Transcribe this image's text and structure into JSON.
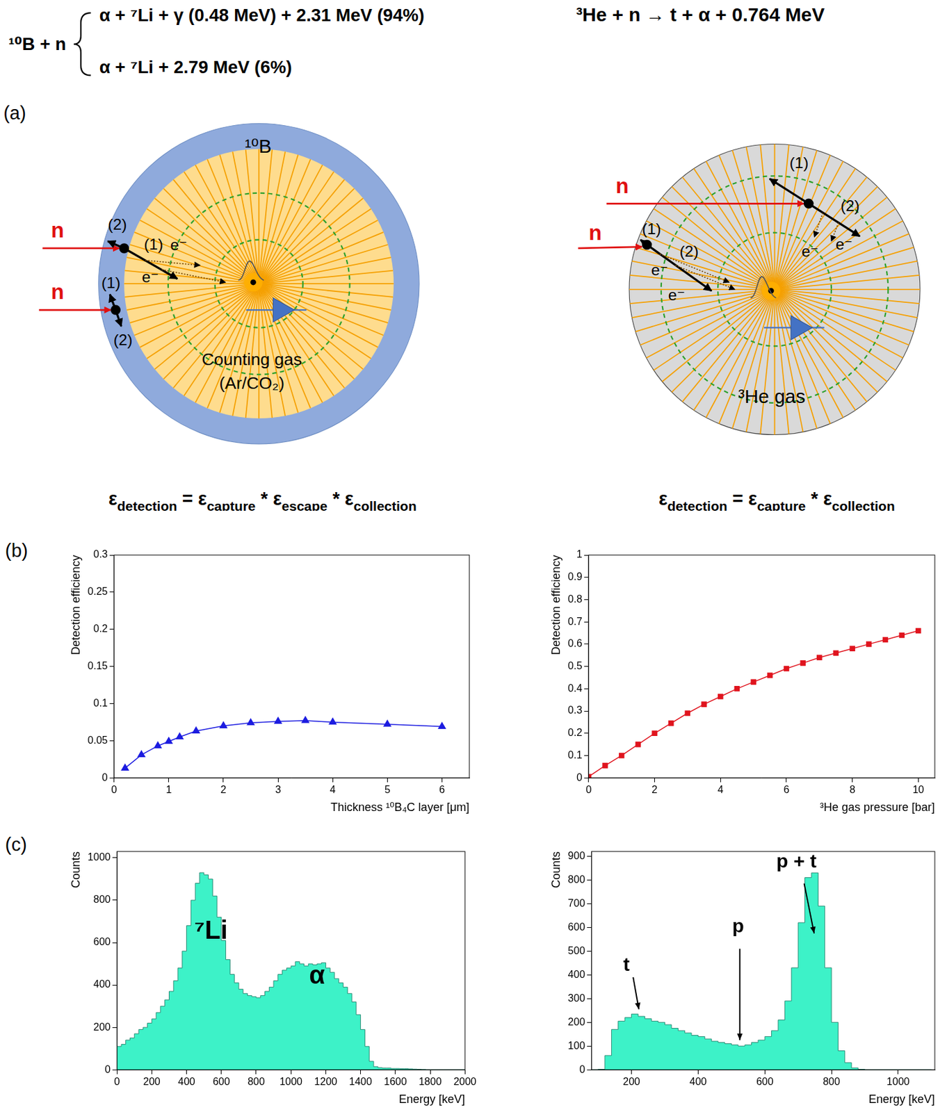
{
  "reactions": {
    "boron": {
      "reactants": "¹⁰B + n",
      "branches": [
        "α + ⁷Li + γ (0.48 MeV) + 2.31 MeV (94%)",
        "α + ⁷Li + 2.79 MeV (6%)"
      ]
    },
    "helium": "³He + n → t + α + 0.764 MeV"
  },
  "panel_labels": [
    "(a)",
    "(b)",
    "(c)"
  ],
  "diagrams": [
    {
      "converter_label": "¹⁰B",
      "gas_label": [
        "Counting gas",
        "(Ar/CO₂)"
      ],
      "neutron_label": "n",
      "track_labels": [
        "(1)",
        "(2)"
      ],
      "electron_label": "e⁻"
    },
    {
      "gas_label": [
        "³He gas"
      ],
      "neutron_label": "n",
      "track_labels": [
        "(1)",
        "(2)"
      ],
      "electron_label": "e⁻"
    }
  ],
  "efficiency_formulas": [
    {
      "symbol": "ε",
      "result": "detection",
      "factors": [
        "capture",
        "escape",
        "collection"
      ]
    },
    {
      "symbol": "ε",
      "result": "detection",
      "factors": [
        "capture",
        "collection"
      ]
    }
  ],
  "operators": {
    "equals": "=",
    "times": "*"
  },
  "chart_data": [
    {
      "type": "line",
      "x_label": "Thickness ¹⁰B₄C layer [μm]",
      "y_label": "Detection efficiency",
      "x": [
        0.2,
        0.5,
        0.8,
        1.0,
        1.2,
        1.5,
        2,
        2.5,
        3,
        3.5,
        4,
        5,
        6
      ],
      "values": [
        0.013,
        0.031,
        0.043,
        0.049,
        0.055,
        0.063,
        0.07,
        0.074,
        0.076,
        0.077,
        0.075,
        0.072,
        0.069
      ],
      "color": "#1c1ce0",
      "marker": "triangle",
      "line_style": "solid",
      "xlim": [
        0,
        6.5
      ],
      "xticks": [
        0,
        1,
        2,
        3,
        4,
        5,
        6
      ],
      "ylim": [
        0,
        0.3
      ],
      "yticks": [
        0,
        0.05,
        0.1,
        0.15,
        0.2,
        0.25,
        0.3
      ],
      "grid": false
    },
    {
      "type": "line",
      "x_label": "³He gas pressure [bar]",
      "y_label": "Detection efficiency",
      "x": [
        0,
        0.5,
        1,
        1.5,
        2,
        2.5,
        3,
        3.5,
        4,
        4.5,
        5,
        5.5,
        6,
        6.5,
        7,
        7.5,
        8,
        8.5,
        9,
        9.5,
        10
      ],
      "values": [
        0.005,
        0.055,
        0.1,
        0.15,
        0.2,
        0.245,
        0.29,
        0.33,
        0.365,
        0.4,
        0.43,
        0.46,
        0.49,
        0.515,
        0.54,
        0.56,
        0.58,
        0.6,
        0.62,
        0.64,
        0.66
      ],
      "color": "#e0141e",
      "marker": "square",
      "line_style": "solid",
      "xlim": [
        0,
        10.5
      ],
      "xticks": [
        0,
        2,
        4,
        6,
        8,
        10
      ],
      "ylim": [
        0,
        1
      ],
      "yticks": [
        0,
        0.1,
        0.2,
        0.3,
        0.4,
        0.5,
        0.6,
        0.7,
        0.8,
        0.9,
        1
      ],
      "grid": false
    },
    {
      "type": "histogram",
      "x_label": "Energy [keV]",
      "y_label": "Counts",
      "bins": [
        0,
        25,
        50,
        75,
        100,
        125,
        150,
        175,
        200,
        225,
        250,
        275,
        300,
        325,
        350,
        375,
        400,
        425,
        450,
        475,
        500,
        525,
        550,
        575,
        600,
        625,
        650,
        675,
        700,
        725,
        750,
        775,
        800,
        825,
        850,
        875,
        900,
        925,
        950,
        975,
        1000,
        1025,
        1050,
        1075,
        1100,
        1125,
        1150,
        1175,
        1200,
        1225,
        1250,
        1275,
        1300,
        1325,
        1350,
        1375,
        1400,
        1425,
        1450,
        1475,
        1500,
        1525,
        1550,
        1575,
        1600,
        1625,
        1650,
        1675,
        1700,
        1725,
        1750,
        1775,
        1800,
        1825,
        1850,
        1875,
        1900,
        1925,
        1950,
        1975,
        2000
      ],
      "counts": [
        140,
        110,
        120,
        140,
        150,
        170,
        190,
        200,
        220,
        240,
        270,
        300,
        330,
        370,
        420,
        480,
        560,
        680,
        800,
        880,
        930,
        920,
        900,
        820,
        720,
        610,
        520,
        450,
        410,
        380,
        360,
        350,
        345,
        340,
        350,
        370,
        390,
        420,
        450,
        470,
        480,
        490,
        510,
        500,
        490,
        500,
        495,
        500,
        505,
        480,
        460,
        430,
        410,
        390,
        360,
        320,
        260,
        190,
        110,
        40,
        15,
        10,
        8,
        8,
        6,
        6,
        5,
        5,
        4,
        3,
        2,
        1,
        0,
        0,
        0,
        0,
        0,
        0,
        0,
        0
      ],
      "color": "#3df2c8",
      "xlim": [
        0,
        2000
      ],
      "xticks": [
        0,
        200,
        400,
        600,
        800,
        1000,
        1200,
        1400,
        1600,
        1800,
        2000
      ],
      "ylim": [
        0,
        1030
      ],
      "yticks": [
        0,
        200,
        400,
        600,
        800,
        1000
      ],
      "grid": false,
      "annotations": [
        {
          "text": "⁷Li"
        },
        {
          "text": "α"
        }
      ]
    },
    {
      "type": "histogram",
      "x_label": "Energy [keV]",
      "y_label": "Counts",
      "bins": [
        80,
        100,
        120,
        140,
        160,
        180,
        200,
        220,
        240,
        260,
        280,
        300,
        320,
        340,
        360,
        380,
        400,
        420,
        440,
        460,
        480,
        500,
        520,
        540,
        560,
        580,
        600,
        620,
        640,
        660,
        680,
        700,
        720,
        740,
        760,
        780,
        800,
        820,
        840,
        860,
        880,
        900,
        920,
        940,
        960,
        980,
        1000,
        1020,
        1040,
        1060,
        1080,
        1100
      ],
      "counts": [
        0,
        0,
        2,
        60,
        170,
        205,
        220,
        235,
        225,
        215,
        205,
        200,
        190,
        175,
        165,
        155,
        145,
        140,
        130,
        120,
        115,
        110,
        105,
        100,
        105,
        115,
        125,
        140,
        165,
        210,
        290,
        430,
        620,
        810,
        830,
        690,
        430,
        200,
        80,
        30,
        8,
        2,
        0,
        0,
        0,
        0,
        0,
        0,
        0,
        0,
        0
      ],
      "color": "#3df2c8",
      "xlim": [
        80,
        1110
      ],
      "xticks": [
        200,
        400,
        600,
        800,
        1000
      ],
      "ylim": [
        0,
        920
      ],
      "yticks": [
        0,
        100,
        200,
        300,
        400,
        500,
        600,
        700,
        800,
        900
      ],
      "grid": false,
      "annotations": [
        {
          "text": "t"
        },
        {
          "text": "p"
        },
        {
          "text": "p + t"
        }
      ]
    }
  ]
}
